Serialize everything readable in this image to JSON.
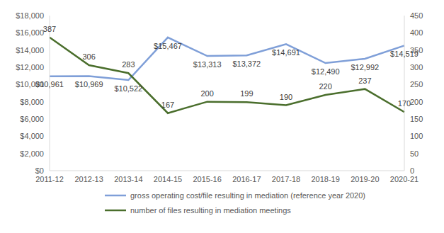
{
  "chart_data": {
    "type": "line",
    "categories": [
      "2011-12",
      "2012-13",
      "2013-14",
      "2014-15",
      "2015-16",
      "2016-17",
      "2017-18",
      "2018-19",
      "2019-20",
      "2020-21"
    ],
    "series": [
      {
        "name": "gross operating cost/file resulting in mediation (reference year 2020)",
        "color": "#7f9fd8",
        "axis": "y",
        "values": [
          10961,
          10969,
          10522,
          15467,
          13313,
          13372,
          14691,
          12490,
          12992,
          14519
        ],
        "value_labels": [
          "$10,961",
          "$10,969",
          "$10,522",
          "$15,467",
          "$13,313",
          "$13,372",
          "$14,691",
          "$12,490",
          "$12,992",
          "$14,519"
        ]
      },
      {
        "name": "number of files resulting in mediation meetings",
        "color": "#4a6e2c",
        "axis": "y2",
        "values": [
          387,
          306,
          283,
          167,
          200,
          199,
          190,
          220,
          237,
          170
        ]
      }
    ],
    "ylim": [
      0,
      18000
    ],
    "yticks": [
      {
        "value": 0,
        "label": "$0"
      },
      {
        "value": 2000,
        "label": "$2,000"
      },
      {
        "value": 4000,
        "label": "$4,000"
      },
      {
        "value": 6000,
        "label": "$6,000"
      },
      {
        "value": 8000,
        "label": "$8,000"
      },
      {
        "value": 10000,
        "label": "$10,000"
      },
      {
        "value": 12000,
        "label": "$12,000"
      },
      {
        "value": 14000,
        "label": "$14,000"
      },
      {
        "value": 16000,
        "label": "$16,000"
      },
      {
        "value": 18000,
        "label": "$18,000"
      }
    ],
    "y2lim": [
      0,
      450
    ],
    "y2ticks": [
      0,
      50,
      100,
      150,
      200,
      250,
      300,
      350,
      400,
      450
    ],
    "grid": false,
    "legend": "bottom",
    "data_labels": true
  }
}
